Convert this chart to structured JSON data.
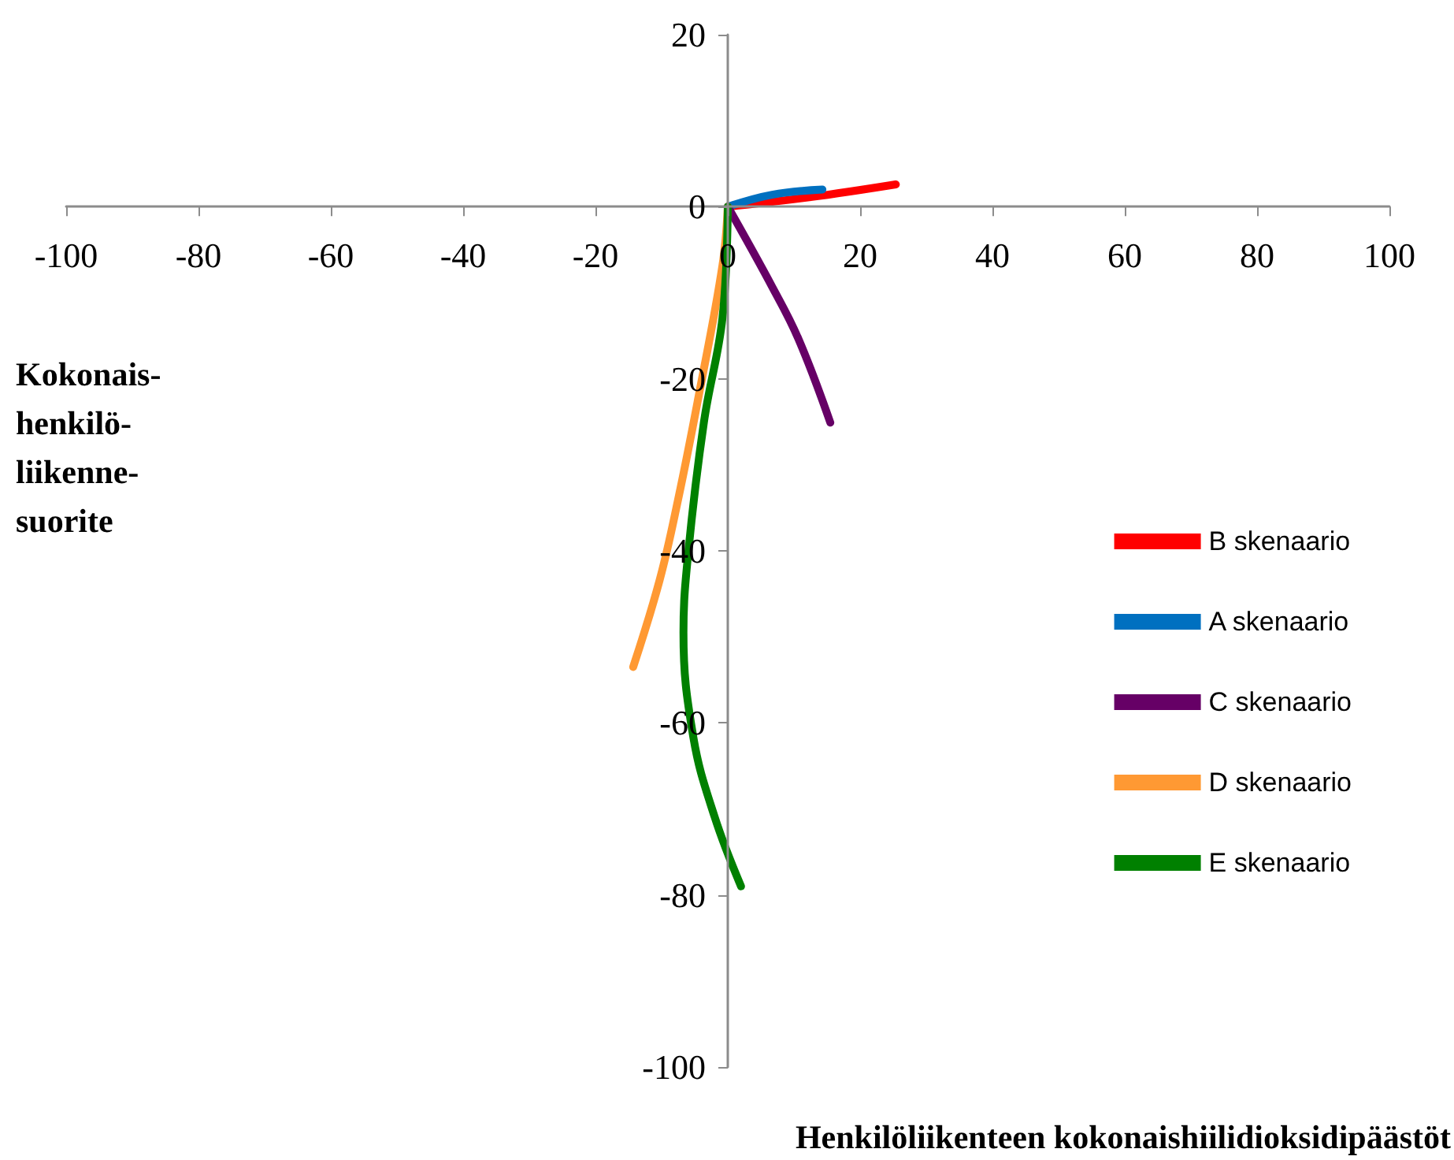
{
  "chart_data": {
    "type": "line",
    "xlabel": "Henkilöliikenteen kokonaishiilidioksidipäästöt",
    "ylabel": "Kokonais-\nhenkilö-\nliikenne-\nsuorite",
    "xlim": [
      -100,
      100
    ],
    "xticks": [
      -100,
      -80,
      -60,
      -40,
      -20,
      0,
      20,
      40,
      60,
      80,
      100
    ],
    "ylim": [
      -100,
      20
    ],
    "yticks": [
      -100,
      -80,
      -60,
      -40,
      -20,
      0,
      20
    ],
    "grid": false,
    "legend": "right",
    "marker": "none",
    "line_style": "solid",
    "series": [
      {
        "name": "B skenaario",
        "color": "#ff0000",
        "x": [
          0,
          12.3,
          25.4
        ],
        "values": [
          0,
          1.1,
          2.6
        ]
      },
      {
        "name": "A skenaario",
        "color": "#0070c0",
        "x": [
          0,
          6.7,
          14.3
        ],
        "values": [
          0,
          1.4,
          2.0
        ]
      },
      {
        "name": "C skenaario",
        "color": "#660066",
        "x": [
          0,
          6.7,
          10.7,
          15.5
        ],
        "values": [
          0,
          -9.3,
          -15.4,
          -25.1
        ]
      },
      {
        "name": "D skenaario",
        "color": "#ff9933",
        "x": [
          0,
          -0.8,
          -4.4,
          -7.5,
          -10.3,
          -14.3
        ],
        "values": [
          0,
          -6.8,
          -22,
          -34,
          -43.4,
          -53.5
        ]
      },
      {
        "name": "E skenaario",
        "color": "#008000",
        "x": [
          0,
          -0.8,
          -3.6,
          -6,
          -6.7,
          -5.2,
          -2,
          2
        ],
        "values": [
          0,
          -12.9,
          -25,
          -40.4,
          -49.5,
          -61.7,
          -70.9,
          -79
        ]
      }
    ]
  }
}
